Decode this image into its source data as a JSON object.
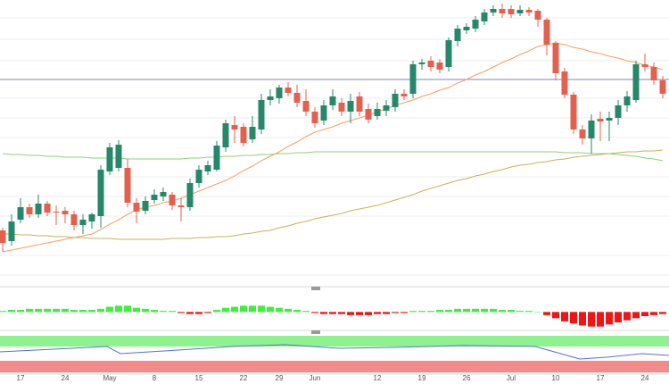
{
  "chart_data": {
    "type": "candlestick",
    "categories": [
      null,
      null,
      "17",
      null,
      null,
      null,
      null,
      "24",
      null,
      null,
      null,
      null,
      "May",
      null,
      null,
      null,
      null,
      "8",
      null,
      null,
      null,
      null,
      "15",
      null,
      null,
      null,
      null,
      "22",
      null,
      null,
      null,
      "29",
      null,
      null,
      null,
      "Jun",
      null,
      null,
      null,
      null,
      null,
      null,
      "12",
      null,
      null,
      null,
      null,
      "19",
      null,
      null,
      null,
      null,
      "26",
      null,
      null,
      null,
      null,
      "Jul",
      null,
      null,
      null,
      null,
      "10",
      null,
      null,
      null,
      null,
      "17",
      null,
      null,
      null,
      null,
      "24",
      null,
      null
    ],
    "open": [
      62,
      50,
      74,
      88,
      80,
      92,
      83,
      84,
      80,
      68,
      72,
      78,
      128,
      132,
      132,
      93,
      84,
      96,
      100,
      102,
      90,
      88,
      115,
      128,
      130,
      155,
      180,
      178,
      164,
      175,
      208,
      210,
      222,
      216,
      207,
      195,
      185,
      202,
      205,
      195,
      212,
      198,
      190,
      196,
      200,
      215,
      215,
      248,
      252,
      250,
      245,
      274,
      286,
      288,
      296,
      306,
      310,
      310,
      305,
      309,
      308,
      298,
      272,
      240,
      214,
      175,
      165,
      187,
      185,
      188,
      202,
      208,
      248,
      245,
      230
    ],
    "high": [
      65,
      80,
      98,
      92,
      102,
      95,
      90,
      88,
      84,
      80,
      82,
      135,
      160,
      163,
      142,
      98,
      100,
      108,
      110,
      105,
      98,
      120,
      135,
      140,
      162,
      186,
      190,
      182,
      190,
      215,
      220,
      225,
      228,
      225,
      220,
      200,
      208,
      220,
      210,
      215,
      217,
      204,
      205,
      208,
      220,
      220,
      252,
      254,
      257,
      254,
      278,
      292,
      294,
      302,
      310,
      314,
      316,
      314,
      314,
      312,
      310,
      300,
      274,
      244,
      217,
      180,
      192,
      195,
      195,
      208,
      218,
      252,
      260,
      250,
      235
    ],
    "low": [
      38,
      45,
      70,
      76,
      76,
      78,
      68,
      70,
      62,
      58,
      64,
      65,
      124,
      128,
      88,
      70,
      80,
      92,
      95,
      85,
      72,
      84,
      110,
      124,
      128,
      150,
      160,
      156,
      160,
      170,
      202,
      204,
      212,
      200,
      190,
      177,
      180,
      197,
      190,
      182,
      190,
      182,
      186,
      190,
      195,
      208,
      210,
      242,
      240,
      238,
      240,
      268,
      282,
      284,
      292,
      302,
      300,
      300,
      302,
      302,
      290,
      258,
      230,
      210,
      170,
      158,
      148,
      162,
      162,
      180,
      195,
      205,
      240,
      225,
      210
    ],
    "close": [
      48,
      72,
      88,
      80,
      92,
      82,
      82,
      80,
      68,
      74,
      80,
      130,
      155,
      158,
      93,
      83,
      95,
      102,
      105,
      90,
      88,
      115,
      130,
      135,
      157,
      182,
      175,
      160,
      178,
      208,
      212,
      222,
      216,
      205,
      195,
      182,
      202,
      212,
      195,
      207,
      195,
      186,
      198,
      202,
      215,
      212,
      248,
      250,
      245,
      242,
      275,
      288,
      290,
      298,
      306,
      310,
      305,
      304,
      309,
      306,
      298,
      270,
      238,
      214,
      175,
      165,
      185,
      184,
      188,
      202,
      212,
      248,
      245,
      230,
      215
    ],
    "up_color": "#26876a",
    "down_color": "#e4604e",
    "ylim": [
      0,
      320
    ],
    "hline": 231,
    "hline_color": "#7b86c9",
    "lines": [
      {
        "color": "#f3a067",
        "values": [
          38,
          40,
          42,
          44,
          46,
          48,
          50,
          52,
          54,
          56,
          58,
          63,
          69,
          74,
          80,
          85,
          88,
          90,
          93,
          95,
          98,
          102,
          106,
          110,
          114,
          118,
          123,
          129,
          134,
          140,
          145,
          150,
          156,
          161,
          167,
          172,
          175,
          178,
          182,
          185,
          188,
          191,
          195,
          198,
          202,
          205,
          208,
          212,
          215,
          219,
          222,
          227,
          231,
          236,
          240,
          245,
          250,
          254,
          259,
          263,
          268,
          270,
          272,
          270,
          267,
          265,
          262,
          260,
          257,
          255,
          252,
          250,
          247,
          245,
          242
        ]
      },
      {
        "color": "#8fd07a",
        "values": [
          148,
          147,
          147,
          146,
          146,
          145,
          145,
          144,
          144,
          144,
          143,
          143,
          143,
          143,
          142,
          142,
          142,
          142,
          142,
          142,
          142,
          143,
          143,
          144,
          144,
          145,
          145,
          146,
          146,
          147,
          147,
          148,
          148,
          149,
          149,
          150,
          150,
          150,
          150,
          150,
          150,
          150,
          150,
          150,
          150,
          150,
          150,
          150,
          150,
          150,
          150,
          150,
          150,
          150,
          150,
          150,
          150,
          150,
          150,
          150,
          150,
          150,
          150,
          149,
          149,
          149,
          148,
          148,
          148,
          147,
          146,
          145,
          143,
          142,
          140
        ]
      },
      {
        "color": "#c2b45c",
        "values": [
          58,
          58,
          57,
          57,
          56,
          56,
          55,
          55,
          54,
          54,
          53,
          53,
          53,
          52,
          52,
          52,
          52,
          52,
          52,
          53,
          53,
          53,
          54,
          54,
          55,
          55,
          56,
          58,
          59,
          61,
          62,
          65,
          67,
          70,
          72,
          75,
          77,
          79,
          81,
          84,
          86,
          88,
          90,
          93,
          96,
          99,
          102,
          106,
          109,
          112,
          115,
          118,
          120,
          123,
          125,
          128,
          130,
          133,
          135,
          136,
          138,
          139,
          141,
          142,
          144,
          145,
          146,
          147,
          148,
          149,
          150,
          150,
          151,
          151,
          152
        ]
      }
    ],
    "histogram": {
      "ylim": [
        -16,
        20
      ],
      "up_color": "#3df03d",
      "down_color": "#f01414",
      "values": [
        1,
        2,
        2,
        3,
        3,
        3,
        3,
        3,
        2,
        2,
        2,
        3,
        5,
        6,
        6,
        4,
        3,
        2,
        1,
        1,
        -1,
        -2,
        -2,
        -1,
        2,
        4,
        5,
        6,
        6,
        6,
        5,
        4,
        3,
        2,
        1,
        -1,
        -2,
        -2,
        -2,
        -3,
        -3,
        -3,
        -2,
        -2,
        -1,
        -1,
        1,
        1,
        1,
        2,
        2,
        3,
        3,
        3,
        3,
        3,
        2,
        2,
        1,
        1,
        0,
        -3,
        -6,
        -9,
        -11,
        -13,
        -14,
        -14,
        -12,
        -10,
        -8,
        -6,
        -4,
        -3,
        -2
      ]
    }
  }
}
